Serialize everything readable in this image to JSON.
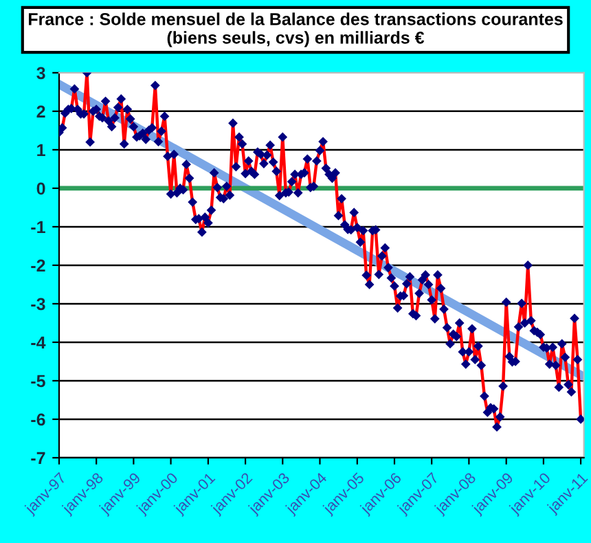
{
  "chart_data": {
    "type": "line",
    "title": "France : Solde mensuel de la Balance des transactions courantes (biens seuls, cvs) en milliards €",
    "series": [
      {
        "color": "#ff0000",
        "marker": "diamond",
        "x": [
          "1997-01",
          "1997-02",
          "1997-03",
          "1997-04",
          "1997-05",
          "1997-06",
          "1997-07",
          "1997-08",
          "1997-09",
          "1997-10",
          "1997-11",
          "1997-12",
          "1998-01",
          "1998-02",
          "1998-03",
          "1998-04",
          "1998-05",
          "1998-06",
          "1998-07",
          "1998-08",
          "1998-09",
          "1998-10",
          "1998-11",
          "1998-12",
          "1999-01",
          "1999-02",
          "1999-03",
          "1999-04",
          "1999-05",
          "1999-06",
          "1999-07",
          "1999-08",
          "1999-09",
          "1999-10",
          "1999-11",
          "1999-12",
          "2000-01",
          "2000-02",
          "2000-03",
          "2000-04",
          "2000-05",
          "2000-06",
          "2000-07",
          "2000-08",
          "2000-09",
          "2000-10",
          "2000-11",
          "2000-12",
          "2001-01",
          "2001-02",
          "2001-03",
          "2001-04",
          "2001-05",
          "2001-06",
          "2001-07",
          "2001-08",
          "2001-09",
          "2001-10",
          "2001-11",
          "2001-12",
          "2002-01",
          "2002-02",
          "2002-03",
          "2002-04",
          "2002-05",
          "2002-06",
          "2002-07",
          "2002-08",
          "2002-09",
          "2002-10",
          "2002-11",
          "2002-12",
          "2003-01",
          "2003-02",
          "2003-03",
          "2003-04",
          "2003-05",
          "2003-06",
          "2003-07",
          "2003-08",
          "2003-09",
          "2003-10",
          "2003-11",
          "2003-12",
          "2004-01",
          "2004-02",
          "2004-03",
          "2004-04",
          "2004-05",
          "2004-06",
          "2004-07",
          "2004-08",
          "2004-09",
          "2004-10",
          "2004-11",
          "2004-12",
          "2005-01",
          "2005-02",
          "2005-03",
          "2005-04",
          "2005-05",
          "2005-06",
          "2005-07",
          "2005-08",
          "2005-09",
          "2005-10",
          "2005-11",
          "2005-12",
          "2006-01",
          "2006-02",
          "2006-03",
          "2006-04",
          "2006-05",
          "2006-06",
          "2006-07",
          "2006-08",
          "2006-09",
          "2006-10",
          "2006-11",
          "2006-12",
          "2007-01",
          "2007-02",
          "2007-03",
          "2007-04",
          "2007-05",
          "2007-06",
          "2007-07",
          "2007-08",
          "2007-09",
          "2007-10",
          "2007-11",
          "2007-12",
          "2008-01",
          "2008-02",
          "2008-03",
          "2008-04",
          "2008-05",
          "2008-06",
          "2008-07",
          "2008-08",
          "2008-09",
          "2008-10",
          "2008-11",
          "2008-12",
          "2009-01",
          "2009-02",
          "2009-03",
          "2009-04",
          "2009-05",
          "2009-06",
          "2009-07",
          "2009-08",
          "2009-09",
          "2009-10",
          "2009-11",
          "2009-12",
          "2010-01",
          "2010-02",
          "2010-03",
          "2010-04",
          "2010-05",
          "2010-06",
          "2010-07",
          "2010-08",
          "2010-09",
          "2010-10",
          "2010-11",
          "2010-12",
          "2011-01"
        ],
        "values": [
          1.45,
          1.57,
          1.95,
          2.05,
          2.07,
          2.58,
          2.05,
          1.93,
          1.93,
          3.0,
          1.2,
          2.0,
          2.05,
          1.87,
          1.83,
          2.26,
          1.75,
          1.6,
          1.83,
          2.1,
          2.32,
          1.15,
          2.05,
          1.8,
          1.6,
          1.33,
          1.36,
          1.43,
          1.27,
          1.51,
          1.57,
          2.67,
          1.21,
          1.48,
          1.87,
          0.83,
          -0.15,
          0.88,
          -0.12,
          0.0,
          -0.04,
          0.62,
          0.26,
          -0.36,
          -0.81,
          -0.79,
          -1.14,
          -0.75,
          -0.9,
          -0.57,
          0.4,
          0.02,
          -0.24,
          -0.27,
          0.05,
          -0.18,
          1.69,
          0.56,
          1.33,
          1.15,
          0.38,
          0.71,
          0.44,
          0.36,
          0.94,
          0.88,
          0.64,
          0.86,
          1.12,
          0.68,
          0.44,
          -0.19,
          1.33,
          -0.12,
          -0.1,
          0.17,
          0.36,
          -0.12,
          0.36,
          0.4,
          0.76,
          0.02,
          0.05,
          0.71,
          0.98,
          1.21,
          0.52,
          0.36,
          0.26,
          0.4,
          -0.71,
          -0.27,
          -0.95,
          -1.07,
          -1.08,
          -0.63,
          -1.02,
          -1.4,
          -1.1,
          -2.26,
          -2.5,
          -1.1,
          -1.08,
          -2.24,
          -1.76,
          -1.55,
          -2.06,
          -2.33,
          -2.54,
          -3.11,
          -2.8,
          -2.79,
          -2.48,
          -2.3,
          -3.26,
          -3.31,
          -2.73,
          -2.38,
          -2.25,
          -2.5,
          -2.9,
          -3.39,
          -2.25,
          -2.6,
          -3.14,
          -3.62,
          -4.04,
          -3.79,
          -3.85,
          -3.5,
          -4.25,
          -4.57,
          -4.25,
          -3.65,
          -4.45,
          -4.1,
          -4.6,
          -5.4,
          -5.82,
          -5.7,
          -5.73,
          -6.2,
          -5.94,
          -5.14,
          -2.96,
          -4.37,
          -4.51,
          -4.5,
          -3.6,
          -2.99,
          -3.5,
          -2.0,
          -3.44,
          -3.7,
          -3.74,
          -3.8,
          -4.13,
          -4.15,
          -4.57,
          -4.13,
          -4.6,
          -5.17,
          -4.04,
          -4.39,
          -5.1,
          -5.29,
          -3.38,
          -4.45,
          -6.0
        ]
      },
      {
        "type": "line",
        "color": "#7aa6e6",
        "marker": "none",
        "x": [
          "1997-01",
          "2011-01"
        ],
        "values": [
          2.7,
          -4.85
        ]
      }
    ],
    "xlim": [
      "1997-01",
      "2011-02"
    ],
    "xticks": [
      {
        "value": "1997-01",
        "label": "janv-97"
      },
      {
        "value": "1998-01",
        "label": "janv-98"
      },
      {
        "value": "1999-01",
        "label": "janv-99"
      },
      {
        "value": "2000-01",
        "label": "janv-00"
      },
      {
        "value": "2001-01",
        "label": "janv-01"
      },
      {
        "value": "2002-01",
        "label": "janv-02"
      },
      {
        "value": "2003-01",
        "label": "janv-03"
      },
      {
        "value": "2004-01",
        "label": "janv-04"
      },
      {
        "value": "2005-01",
        "label": "janv-05"
      },
      {
        "value": "2006-01",
        "label": "janv-06"
      },
      {
        "value": "2007-01",
        "label": "janv-07"
      },
      {
        "value": "2008-01",
        "label": "janv-08"
      },
      {
        "value": "2009-01",
        "label": "janv-09"
      },
      {
        "value": "2010-01",
        "label": "janv-10"
      },
      {
        "value": "2011-01",
        "label": "janv-11"
      }
    ],
    "ylim": [
      -7,
      3
    ],
    "yticks": [
      -7,
      -6,
      -5,
      -4,
      -3,
      -2,
      -1,
      0,
      1,
      2,
      3
    ],
    "ref_lines": [
      {
        "axis": "y",
        "value": 0,
        "color": "#2e9e5b"
      }
    ],
    "grid": "y",
    "legend": false
  }
}
